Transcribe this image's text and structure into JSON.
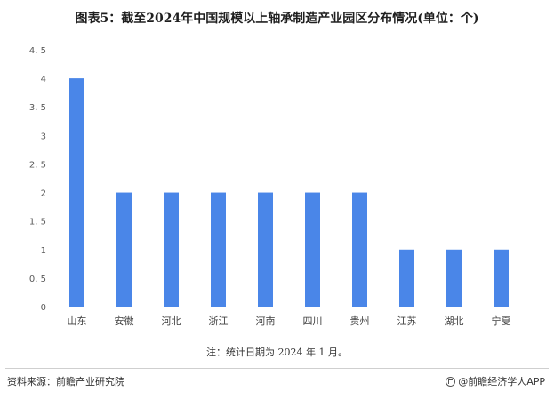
{
  "title": "图表5：截至2024年中国规模以上轴承制造产业园区分布情况(单位：个)",
  "note": "注：统计日期为 2024 年 1 月。",
  "source": "资料来源：前瞻产业研究院",
  "brand": "@前瞻经济学人APP",
  "colors": {
    "bar": "#4a86e8",
    "axis": "#d9d9d9"
  },
  "chart_data": {
    "type": "bar",
    "categories": [
      "山东",
      "安徽",
      "河北",
      "浙江",
      "河南",
      "四川",
      "贵州",
      "江苏",
      "湖北",
      "宁夏"
    ],
    "values": [
      4,
      2,
      2,
      2,
      2,
      2,
      2,
      1,
      1,
      1
    ],
    "title": "图表5：截至2024年中国规模以上轴承制造产业园区分布情况(单位：个)",
    "xlabel": "",
    "ylabel": "",
    "ylim": [
      0,
      4.5
    ],
    "yticks": [
      0,
      0.5,
      1,
      1.5,
      2,
      2.5,
      3,
      3.5,
      4,
      4.5
    ],
    "ytick_labels": [
      "0",
      "0. 5",
      "1",
      "1. 5",
      "2",
      "2. 5",
      "3",
      "3. 5",
      "4",
      "4. 5"
    ],
    "grid": false,
    "legend": "none"
  }
}
